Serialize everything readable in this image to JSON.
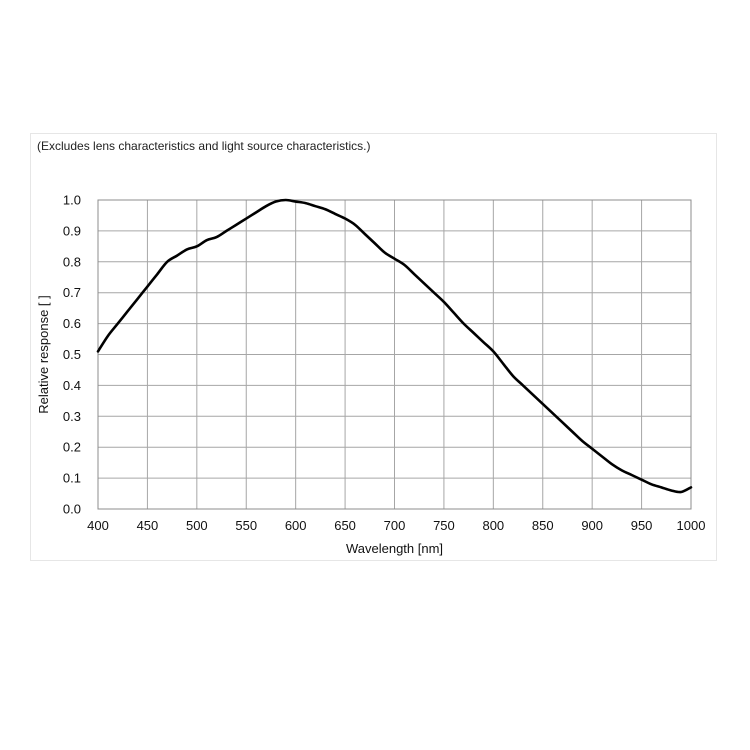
{
  "chart_data": {
    "type": "line",
    "note": "(Excludes lens characteristics and light source characteristics.)",
    "xlabel": "Wavelength [nm]",
    "ylabel": "Relative response [ ]",
    "xlim": [
      400,
      1000
    ],
    "ylim": [
      0.0,
      1.0
    ],
    "x_ticks": [
      "400",
      "450",
      "500",
      "550",
      "600",
      "650",
      "700",
      "750",
      "800",
      "850",
      "900",
      "950",
      "1000"
    ],
    "y_ticks": [
      "0.0",
      "0.1",
      "0.2",
      "0.3",
      "0.4",
      "0.5",
      "0.6",
      "0.7",
      "0.8",
      "0.9",
      "1.0"
    ],
    "grid": true,
    "line_color": "#000000",
    "grid_color": "#a6a6a6",
    "series": [
      {
        "x": [
          400,
          410,
          420,
          430,
          440,
          450,
          460,
          470,
          480,
          490,
          500,
          510,
          520,
          530,
          540,
          550,
          560,
          570,
          580,
          590,
          600,
          610,
          620,
          630,
          640,
          650,
          660,
          670,
          680,
          690,
          700,
          710,
          720,
          730,
          740,
          750,
          760,
          770,
          780,
          790,
          800,
          810,
          820,
          830,
          840,
          850,
          860,
          870,
          880,
          890,
          900,
          910,
          920,
          930,
          940,
          950,
          960,
          970,
          980,
          990,
          1000
        ],
        "y": [
          0.51,
          0.56,
          0.6,
          0.64,
          0.68,
          0.72,
          0.76,
          0.8,
          0.82,
          0.84,
          0.85,
          0.87,
          0.88,
          0.9,
          0.92,
          0.94,
          0.96,
          0.98,
          0.995,
          1.0,
          0.995,
          0.99,
          0.98,
          0.97,
          0.955,
          0.94,
          0.92,
          0.89,
          0.86,
          0.83,
          0.81,
          0.79,
          0.76,
          0.73,
          0.7,
          0.67,
          0.635,
          0.6,
          0.57,
          0.54,
          0.51,
          0.47,
          0.43,
          0.4,
          0.37,
          0.34,
          0.31,
          0.28,
          0.25,
          0.22,
          0.195,
          0.17,
          0.145,
          0.125,
          0.11,
          0.095,
          0.08,
          0.07,
          0.06,
          0.055,
          0.07
        ]
      }
    ]
  }
}
